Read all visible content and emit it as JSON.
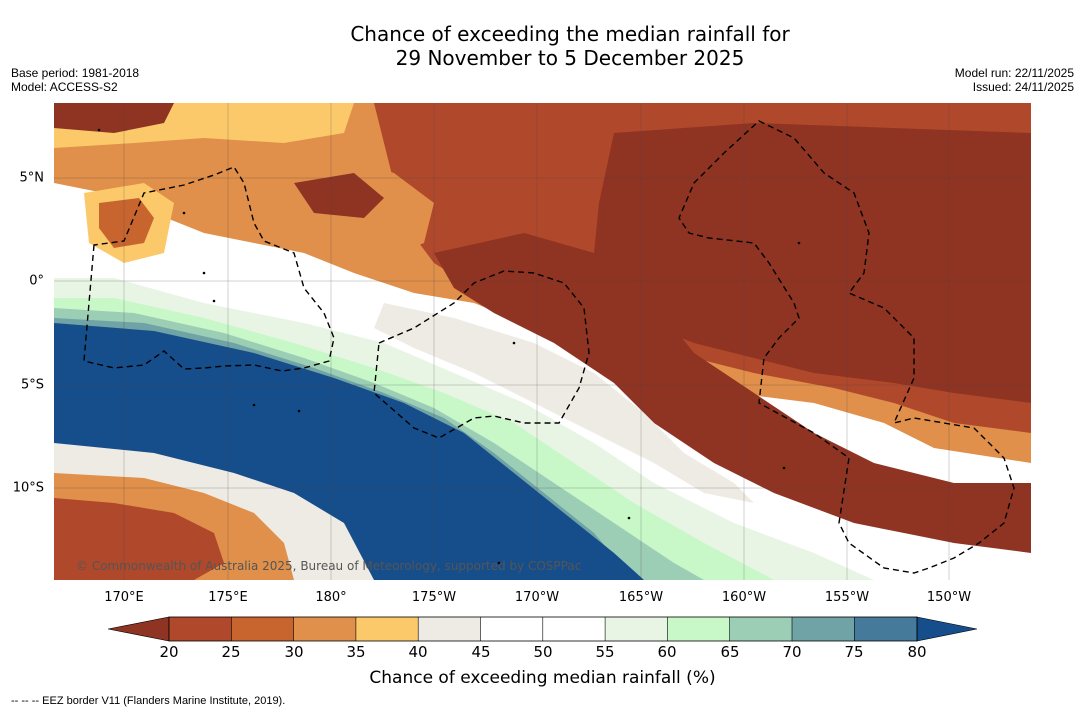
{
  "title": {
    "line1": "Chance of exceeding the median rainfall for",
    "line2": "29 November to 5 December 2025"
  },
  "meta": {
    "base_period": "Base period: 1981-2018",
    "model": "Model: ACCESS-S2",
    "model_run": "Model run: 22/11/2025",
    "issued": "Issued: 24/11/2025"
  },
  "map": {
    "copyright": "© Commonwealth of Australia 2025, Bureau of Meteorology, supported by COSPPac",
    "lon_labels": [
      "170°E",
      "175°E",
      "180°",
      "175°W",
      "170°W",
      "165°W",
      "160°W",
      "155°W",
      "150°W"
    ],
    "lat_labels": [
      "5°N",
      "0°",
      "5°S",
      "10°S"
    ],
    "colors": {
      "c20": "#8f3322",
      "c25": "#b0482b",
      "c30": "#c8652f",
      "c35": "#e0904a",
      "c40": "#fbc96a",
      "c45": "#eeebe4",
      "c50": "#ffffff",
      "c55": "#ffffff",
      "c60": "#e9f5e4",
      "c65": "#c8f7c8",
      "c70": "#9ccdb5",
      "c75": "#6fa3a5",
      "c80": "#457a9a",
      "c85": "#164e8b"
    }
  },
  "colorbar": {
    "ticks": [
      "20",
      "25",
      "30",
      "35",
      "40",
      "45",
      "50",
      "55",
      "60",
      "65",
      "70",
      "75",
      "80"
    ],
    "colors": [
      "#8f3322",
      "#b0482b",
      "#c8652f",
      "#e0904a",
      "#fbc96a",
      "#eeebe4",
      "#ffffff",
      "#ffffff",
      "#e9f5e4",
      "#c8f7c8",
      "#9ccdb5",
      "#6fa3a5",
      "#457a9a",
      "#164e8b"
    ],
    "label": "Chance of exceeding median rainfall (%)"
  },
  "footer": "-- -- -- EEZ border V11 (Flanders Marine Institute, 2019)."
}
